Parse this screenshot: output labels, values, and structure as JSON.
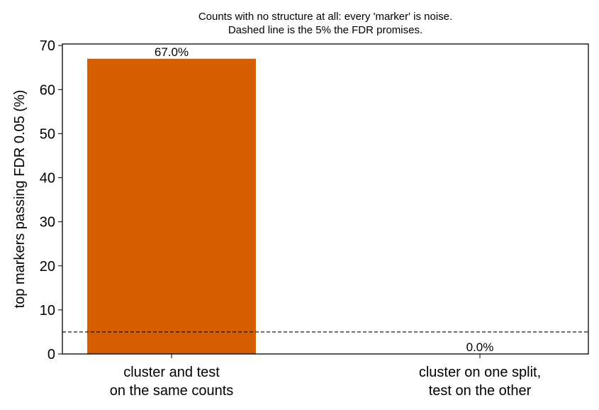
{
  "chart_data": {
    "type": "bar",
    "title": "Counts with no structure at all: every 'marker' is noise.\nDashed line is the 5% the FDR promises.",
    "ylabel": "top markers passing FDR 0.05  (%)",
    "categories": [
      "cluster and test\non the same counts",
      "cluster on one split,\ntest on the other"
    ],
    "values": [
      67.0,
      0.0
    ],
    "value_labels": [
      "67.0%",
      "0.0%"
    ],
    "color": "#d55e00",
    "ylim": [
      0,
      70.35
    ],
    "yticks": [
      0,
      10,
      20,
      30,
      40,
      50,
      60,
      70
    ],
    "hline": 5,
    "grid": false
  }
}
